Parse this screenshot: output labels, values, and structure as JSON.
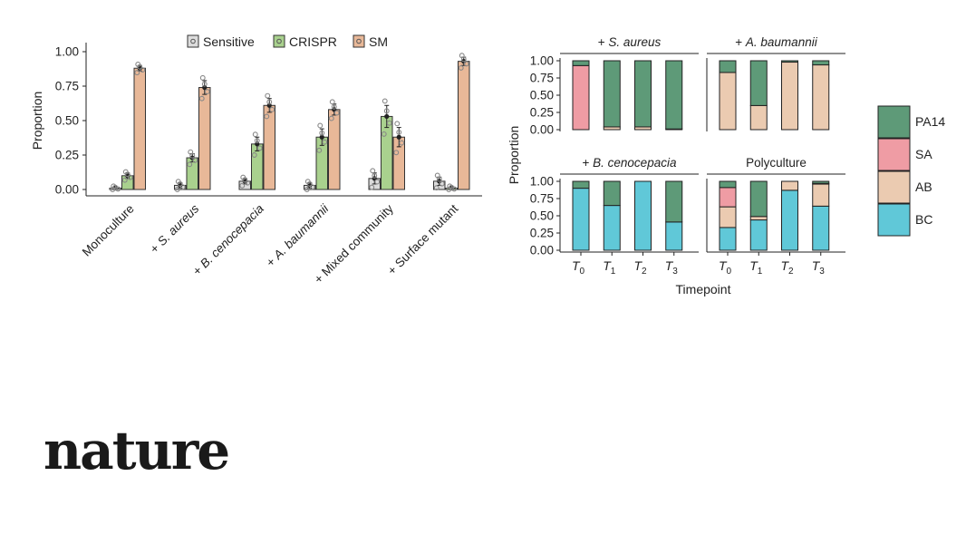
{
  "logo": "nature",
  "colors": {
    "sensitive": "#dcdcdc",
    "crispr": "#a9d18e",
    "sm": "#e8b898",
    "pa14": "#5e9a78",
    "sa": "#ef9ca4",
    "ab": "#ebcbb1",
    "bc": "#60c8d8"
  },
  "chart_data": [
    {
      "type": "bar",
      "title": "",
      "ylabel": "Proportion",
      "xlabel": "",
      "ylim": [
        0,
        1
      ],
      "yticks": [
        "0.00",
        "0.25",
        "0.50",
        "0.75",
        "1.00"
      ],
      "legend_position": "top",
      "categories": [
        "Monoculture",
        "+ S. aureus",
        "+ B. cenocepacia",
        "+ A. baumannii",
        "+ Mixed community",
        "+ Surface mutant"
      ],
      "series": [
        {
          "name": "Sensitive",
          "values": [
            0.01,
            0.03,
            0.06,
            0.03,
            0.08,
            0.06
          ],
          "errors": [
            0.01,
            0.02,
            0.02,
            0.02,
            0.04,
            0.03
          ]
        },
        {
          "name": "CRISPR",
          "values": [
            0.1,
            0.23,
            0.33,
            0.38,
            0.53,
            0.01
          ],
          "errors": [
            0.02,
            0.03,
            0.05,
            0.06,
            0.08,
            0.01
          ]
        },
        {
          "name": "SM",
          "values": [
            0.88,
            0.74,
            0.61,
            0.58,
            0.38,
            0.93
          ],
          "errors": [
            0.02,
            0.05,
            0.05,
            0.04,
            0.07,
            0.03
          ]
        }
      ]
    },
    {
      "type": "bar",
      "stacked": true,
      "ylabel": "Proportion",
      "xlabel": "Timepoint",
      "ylim": [
        0,
        1
      ],
      "yticks": [
        "0.00",
        "0.25",
        "0.50",
        "0.75",
        "1.00"
      ],
      "legend": [
        "PA14",
        "SA",
        "AB",
        "BC"
      ],
      "legend_position": "right",
      "timepoints": [
        "0",
        "1",
        "2",
        "3"
      ],
      "panels": [
        {
          "title": "+ S. aureus",
          "italic": true,
          "series": [
            {
              "name": "PA14",
              "values": [
                0.07,
                0.96,
                0.96,
                0.99
              ]
            },
            {
              "name": "SA",
              "values": [
                0.93,
                0.0,
                0.0,
                0.0
              ]
            },
            {
              "name": "AB",
              "values": [
                0.0,
                0.04,
                0.04,
                0.01
              ]
            },
            {
              "name": "BC",
              "values": [
                0.0,
                0.0,
                0.0,
                0.0
              ]
            }
          ]
        },
        {
          "title": "+ A. baumannii",
          "italic": true,
          "series": [
            {
              "name": "PA14",
              "values": [
                0.17,
                0.65,
                0.02,
                0.06
              ]
            },
            {
              "name": "SA",
              "values": [
                0.0,
                0.0,
                0.0,
                0.0
              ]
            },
            {
              "name": "AB",
              "values": [
                0.83,
                0.35,
                0.98,
                0.94
              ]
            },
            {
              "name": "BC",
              "values": [
                0.0,
                0.0,
                0.0,
                0.0
              ]
            }
          ]
        },
        {
          "title": "+ B. cenocepacia",
          "italic": true,
          "series": [
            {
              "name": "PA14",
              "values": [
                0.1,
                0.35,
                0.0,
                0.59
              ]
            },
            {
              "name": "SA",
              "values": [
                0.0,
                0.0,
                0.0,
                0.0
              ]
            },
            {
              "name": "AB",
              "values": [
                0.0,
                0.0,
                0.0,
                0.0
              ]
            },
            {
              "name": "BC",
              "values": [
                0.9,
                0.65,
                1.0,
                0.41
              ]
            }
          ]
        },
        {
          "title": "Polyculture",
          "italic": false,
          "series": [
            {
              "name": "PA14",
              "values": [
                0.09,
                0.51,
                0.0,
                0.03
              ]
            },
            {
              "name": "SA",
              "values": [
                0.28,
                0.0,
                0.0,
                0.01
              ]
            },
            {
              "name": "AB",
              "values": [
                0.3,
                0.05,
                0.13,
                0.32
              ]
            },
            {
              "name": "BC",
              "values": [
                0.33,
                0.44,
                0.87,
                0.64
              ]
            }
          ]
        }
      ]
    }
  ]
}
